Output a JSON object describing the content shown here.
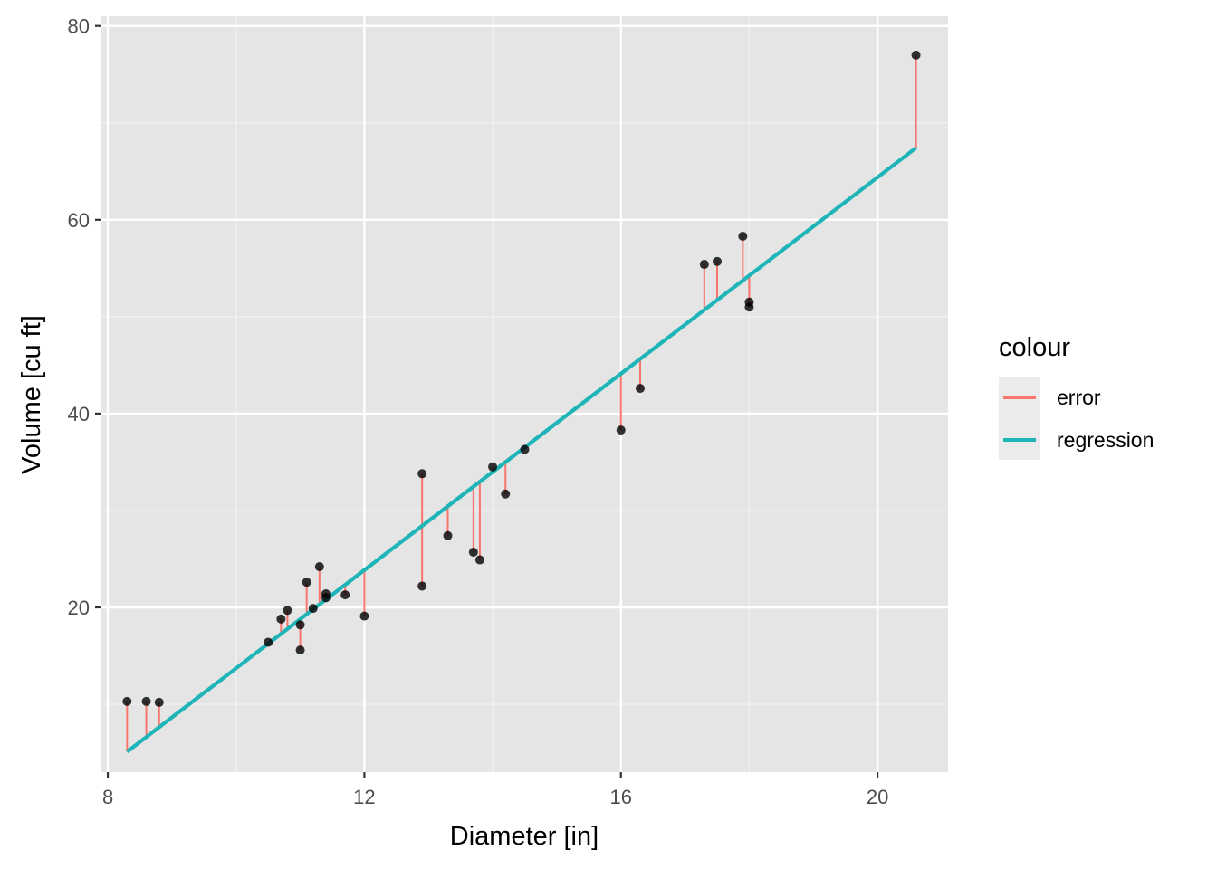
{
  "chart_data": {
    "type": "scatter",
    "xlabel": "Diameter [in]",
    "ylabel": "Volume [cu ft]",
    "xlim": [
      7.9,
      21.1
    ],
    "ylim": [
      3.0,
      81.0
    ],
    "x_ticks": [
      8,
      12,
      16,
      20
    ],
    "x_tick_labels": [
      "8",
      "12",
      "16",
      "20"
    ],
    "y_ticks": [
      20,
      40,
      60,
      80
    ],
    "y_tick_labels": [
      "20",
      "40",
      "60",
      "80"
    ],
    "grid": true,
    "background": "#e5e5e5",
    "points": {
      "x": [
        8.3,
        8.6,
        8.8,
        10.5,
        10.7,
        10.8,
        11.0,
        11.0,
        11.1,
        11.2,
        11.3,
        11.4,
        11.4,
        11.7,
        12.0,
        12.9,
        12.9,
        13.3,
        13.7,
        13.8,
        14.0,
        14.2,
        14.5,
        16.0,
        16.3,
        17.3,
        17.5,
        17.9,
        18.0,
        18.0,
        20.6
      ],
      "y": [
        10.3,
        10.3,
        10.2,
        16.4,
        18.8,
        19.7,
        15.6,
        18.2,
        22.6,
        19.9,
        24.2,
        21.0,
        21.4,
        21.3,
        19.1,
        22.2,
        33.8,
        27.4,
        25.7,
        24.9,
        34.5,
        31.7,
        36.3,
        38.3,
        42.6,
        55.4,
        55.7,
        58.3,
        51.5,
        51.0,
        77.0
      ],
      "color": "#000000"
    },
    "regression": {
      "intercept": -36.94,
      "slope": 5.066,
      "x_range": [
        8.3,
        20.6
      ]
    },
    "series": [
      {
        "name": "error",
        "color": "#F8766D"
      },
      {
        "name": "regression",
        "color": "#1fb5b8"
      }
    ],
    "legend": {
      "title": "colour",
      "placement": "right"
    }
  }
}
